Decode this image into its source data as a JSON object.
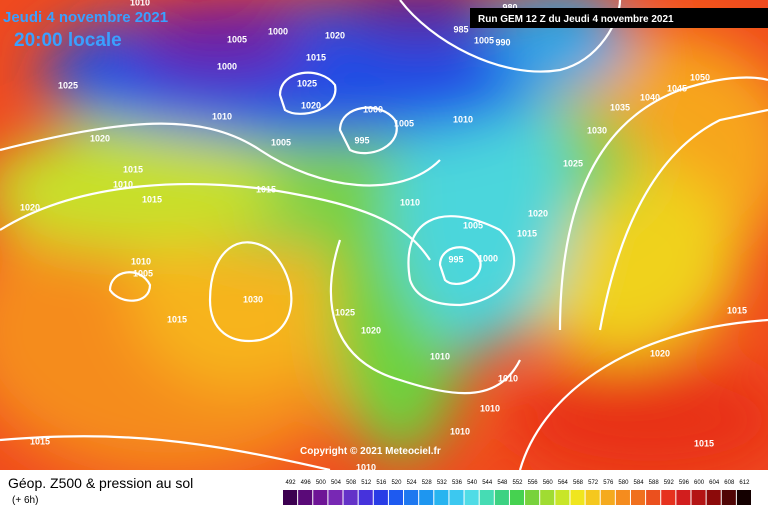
{
  "header": {
    "date": "Jeudi 4 novembre 2021",
    "time": "20:00 locale",
    "run": "Run GEM 12 Z du Jeudi 4 novembre 2021"
  },
  "map": {
    "isobar_labels": [
      1010,
      1005,
      1000,
      1020,
      1000,
      1015,
      1025,
      1020,
      1025,
      1010,
      1000,
      1005,
      1010,
      995,
      1005,
      1020,
      1015,
      1010,
      1015,
      1015,
      1020,
      1005,
      985,
      990,
      980,
      1050,
      1045,
      1040,
      1035,
      1030,
      1025,
      1010,
      1020,
      1015,
      1005,
      995,
      1000,
      1010,
      1005,
      1030,
      1015,
      1025,
      1020,
      1010,
      1010,
      1010,
      1015,
      1020,
      1010,
      1015,
      1015,
      1010
    ]
  },
  "copyright": "Copyright © 2021 Meteociel.fr",
  "legend": {
    "title": "Géop. Z500 & pression au sol",
    "lead": "(+ 6h)",
    "scale": [
      492,
      496,
      500,
      504,
      508,
      512,
      516,
      520,
      524,
      528,
      532,
      536,
      540,
      544,
      548,
      552,
      556,
      560,
      564,
      568,
      572,
      576,
      580,
      584,
      588,
      592,
      596,
      600,
      604,
      608,
      612
    ]
  }
}
